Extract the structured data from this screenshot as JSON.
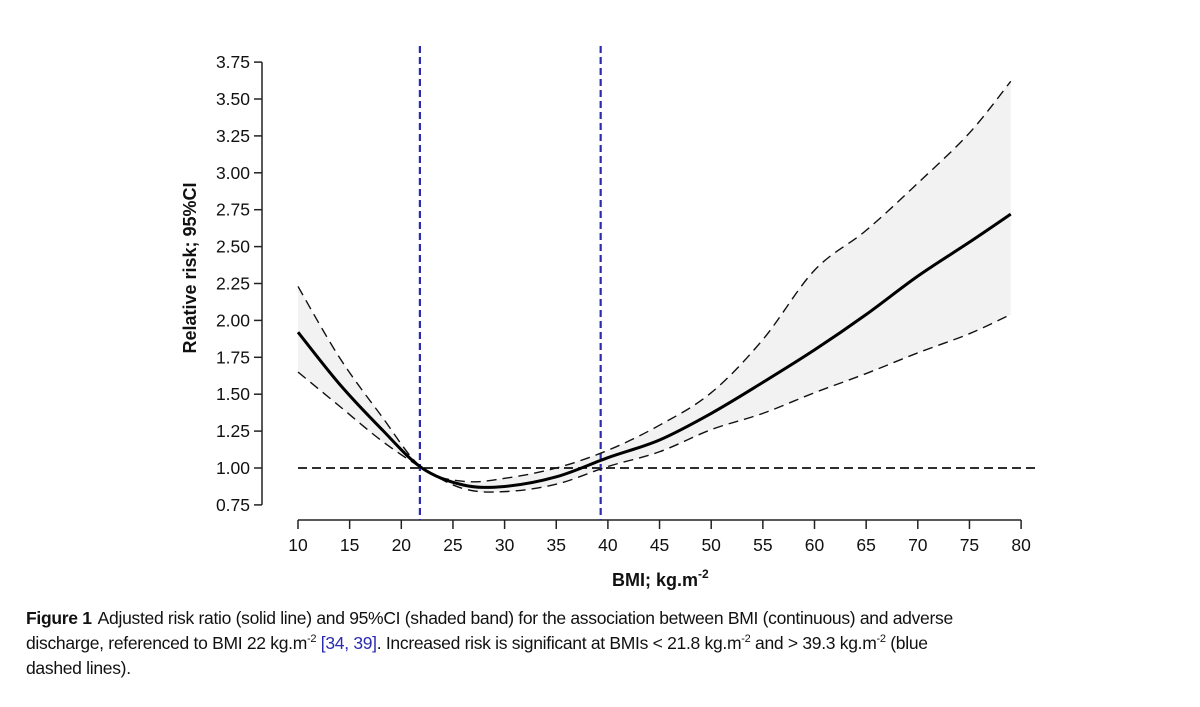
{
  "chart_data": {
    "type": "line",
    "xlabel": "BMI; kg.m",
    "xlabel_sup": "-2",
    "ylabel": "Relative risk; 95%CI",
    "xlim": [
      10,
      80
    ],
    "ylim": [
      0.75,
      3.75
    ],
    "xticks": [
      "10",
      "15",
      "20",
      "25",
      "30",
      "35",
      "40",
      "45",
      "50",
      "55",
      "60",
      "65",
      "70",
      "75",
      "80"
    ],
    "yticks": [
      "0.75",
      "1.00",
      "1.25",
      "1.50",
      "1.75",
      "2.00",
      "2.25",
      "2.50",
      "2.75",
      "3.00",
      "3.25",
      "3.50",
      "3.75"
    ],
    "x": [
      10,
      14,
      18,
      22,
      26,
      30,
      35,
      40,
      45,
      50,
      55,
      60,
      65,
      70,
      75,
      79
    ],
    "series": [
      {
        "name": "Adjusted risk ratio",
        "style": "solid",
        "values": [
          1.92,
          1.57,
          1.27,
          1.0,
          0.885,
          0.875,
          0.94,
          1.07,
          1.19,
          1.37,
          1.58,
          1.8,
          2.04,
          2.3,
          2.53,
          2.72
        ]
      },
      {
        "name": "Upper 95%CI",
        "style": "dashed",
        "values": [
          2.23,
          1.75,
          1.36,
          1.0,
          0.91,
          0.93,
          1.0,
          1.12,
          1.29,
          1.51,
          1.87,
          2.34,
          2.61,
          2.93,
          3.27,
          3.62
        ]
      },
      {
        "name": "Lower 95%CI",
        "style": "dashed",
        "values": [
          1.65,
          1.42,
          1.19,
          1.0,
          0.86,
          0.84,
          0.89,
          1.01,
          1.11,
          1.26,
          1.37,
          1.51,
          1.64,
          1.78,
          1.91,
          2.04
        ]
      }
    ],
    "reference_line_y": 1.0,
    "significance_lines_x": [
      21.8,
      39.3
    ],
    "colors": {
      "band": "#f2f2f2",
      "line": "#000000",
      "significance": "#2b2bb0"
    },
    "grid": false
  },
  "caption": {
    "label": "Figure 1",
    "line1": "Adjusted risk ratio (solid line) and 95%CI (shaded band) for the association between BMI (continuous) and adverse",
    "line2a": "discharge, referenced to BMI 22  kg.m",
    "sup": "-2",
    "ref": "[34, 39]",
    "line2b": ". Increased risk is significant at BMIs < 21.8  kg.m",
    "line2c": " and > 39.3  kg.m",
    "line2d": " (blue",
    "line3": "dashed lines)."
  }
}
